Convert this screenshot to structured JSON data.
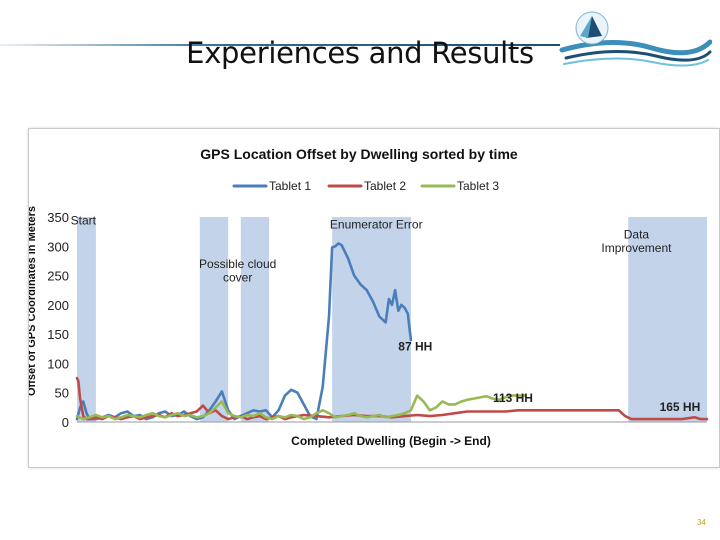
{
  "slide": {
    "title": "Experiences and Results",
    "page_number": "34"
  },
  "colors": {
    "tablet1": "#4a7ebb",
    "tablet2": "#be4b48",
    "tablet3": "#98b954",
    "band": "#c3d4ea",
    "accent": "#1d4f75",
    "page_number": "#c9a227"
  },
  "chart_data": {
    "type": "line",
    "title": "GPS Location Offset by Dwelling sorted by time",
    "xlabel": "Completed Dwelling (Begin -> End)",
    "ylabel": "Offset of GPS Coordinates in Meters",
    "xlim": [
      0,
      1000
    ],
    "ylim": [
      0,
      350
    ],
    "y_ticks": [
      0,
      50,
      100,
      150,
      200,
      250,
      300,
      350
    ],
    "legend": "top",
    "grid": false,
    "bands": [
      {
        "x0": 0,
        "x1": 30
      },
      {
        "x0": 195,
        "x1": 240
      },
      {
        "x0": 260,
        "x1": 305
      },
      {
        "x0": 405,
        "x1": 530
      },
      {
        "x0": 875,
        "x1": 1000
      }
    ],
    "annotations": [
      {
        "text": "Start",
        "x": 10,
        "y": 337
      },
      {
        "text": "Possible cloud",
        "x": 255,
        "y": 263
      },
      {
        "text": "cover",
        "x": 255,
        "y": 240
      },
      {
        "text": "Enumerator Error",
        "x": 475,
        "y": 330
      },
      {
        "text": "Data",
        "x": 888,
        "y": 313
      },
      {
        "text": "Improvement",
        "x": 888,
        "y": 290
      },
      {
        "text": "87 HH",
        "x": 537,
        "y": 122
      },
      {
        "text": "113 HH",
        "x": 692,
        "y": 34
      },
      {
        "text": "165 HH",
        "x": 957,
        "y": 19
      }
    ],
    "series": [
      {
        "name": "Tablet 1",
        "x": [
          0,
          5,
          10,
          15,
          20,
          30,
          40,
          50,
          60,
          70,
          80,
          90,
          100,
          110,
          120,
          130,
          140,
          150,
          160,
          170,
          180,
          190,
          200,
          210,
          220,
          230,
          240,
          250,
          260,
          270,
          280,
          290,
          300,
          310,
          320,
          330,
          340,
          350,
          360,
          370,
          380,
          390,
          400,
          405,
          410,
          415,
          420,
          430,
          440,
          450,
          460,
          470,
          480,
          490,
          495,
          500,
          505,
          510,
          515,
          520,
          525,
          530
        ],
        "values": [
          5,
          25,
          35,
          15,
          5,
          5,
          8,
          12,
          8,
          15,
          18,
          10,
          12,
          5,
          8,
          15,
          18,
          10,
          12,
          18,
          10,
          5,
          8,
          20,
          35,
          52,
          20,
          5,
          10,
          15,
          20,
          18,
          20,
          8,
          20,
          45,
          55,
          50,
          30,
          10,
          5,
          60,
          180,
          298,
          300,
          305,
          302,
          280,
          250,
          235,
          225,
          205,
          180,
          170,
          210,
          200,
          225,
          190,
          200,
          195,
          185,
          140
        ]
      },
      {
        "name": "Tablet 2",
        "x": [
          0,
          2,
          5,
          10,
          15,
          20,
          30,
          40,
          50,
          60,
          70,
          80,
          90,
          100,
          110,
          120,
          130,
          140,
          150,
          160,
          170,
          180,
          190,
          200,
          210,
          220,
          230,
          240,
          250,
          260,
          270,
          280,
          290,
          300,
          310,
          320,
          330,
          340,
          350,
          360,
          380,
          400,
          420,
          440,
          460,
          480,
          500,
          520,
          540,
          560,
          580,
          600,
          620,
          640,
          660,
          680,
          700,
          720,
          740,
          760,
          780,
          800,
          820,
          840,
          860,
          870,
          880,
          890,
          900,
          920,
          940,
          960,
          980,
          990,
          1000
        ],
        "values": [
          75,
          70,
          40,
          10,
          5,
          5,
          8,
          5,
          10,
          8,
          5,
          8,
          10,
          5,
          8,
          10,
          12,
          8,
          15,
          10,
          12,
          15,
          18,
          28,
          15,
          20,
          10,
          5,
          8,
          10,
          5,
          8,
          10,
          5,
          8,
          10,
          5,
          8,
          10,
          12,
          10,
          8,
          10,
          12,
          10,
          10,
          8,
          10,
          12,
          10,
          12,
          15,
          18,
          18,
          18,
          18,
          20,
          20,
          20,
          20,
          20,
          20,
          20,
          20,
          20,
          10,
          5,
          5,
          5,
          5,
          5,
          5,
          8,
          5,
          5
        ]
      },
      {
        "name": "Tablet 3",
        "x": [
          0,
          10,
          20,
          30,
          40,
          50,
          60,
          70,
          80,
          90,
          100,
          110,
          120,
          130,
          140,
          150,
          160,
          170,
          180,
          190,
          200,
          210,
          220,
          230,
          240,
          250,
          260,
          270,
          280,
          290,
          300,
          310,
          320,
          330,
          340,
          350,
          360,
          370,
          380,
          390,
          400,
          410,
          420,
          430,
          440,
          450,
          460,
          470,
          480,
          490,
          500,
          510,
          520,
          530,
          540,
          550,
          560,
          570,
          580,
          590,
          600,
          610,
          620,
          630,
          640,
          650,
          660,
          670,
          680,
          690,
          700,
          710
        ],
        "values": [
          10,
          5,
          8,
          12,
          8,
          10,
          5,
          8,
          12,
          10,
          8,
          12,
          15,
          10,
          8,
          12,
          15,
          10,
          12,
          8,
          10,
          15,
          25,
          35,
          15,
          10,
          8,
          12,
          10,
          15,
          8,
          5,
          10,
          8,
          12,
          10,
          5,
          8,
          15,
          20,
          15,
          8,
          10,
          12,
          15,
          10,
          8,
          10,
          12,
          8,
          10,
          12,
          15,
          20,
          45,
          35,
          20,
          25,
          35,
          30,
          30,
          35,
          38,
          40,
          42,
          44,
          40,
          38,
          42,
          45,
          45,
          45
        ]
      }
    ]
  }
}
